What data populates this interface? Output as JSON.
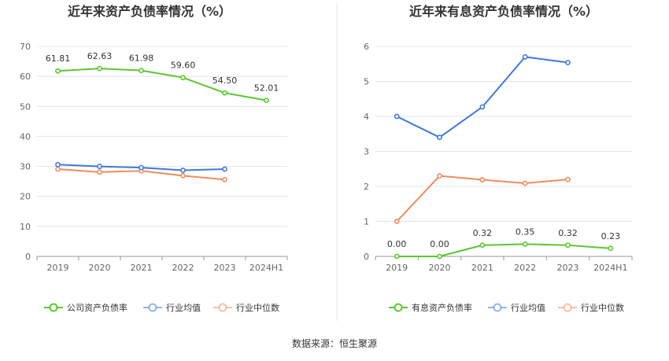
{
  "chart_data": [
    {
      "type": "line",
      "title": "近年来资产负债率情况（%）",
      "categories": [
        "2019",
        "2020",
        "2021",
        "2022",
        "2023",
        "2024H1"
      ],
      "y_ticks": [
        "0",
        "10",
        "20",
        "30",
        "40",
        "50",
        "60",
        "70"
      ],
      "ylim": [
        0,
        70
      ],
      "grid": true,
      "legend_placement": "bottom",
      "series": [
        {
          "name": "公司资产负债率",
          "color": "#5ac831",
          "values": [
            61.81,
            62.63,
            61.98,
            59.6,
            54.5,
            52.01
          ],
          "labels": [
            "61.81",
            "62.63",
            "61.98",
            "59.60",
            "54.50",
            "52.01"
          ]
        },
        {
          "name": "行业均值",
          "color": "#3f79dd",
          "values": [
            30.6,
            30.0,
            29.6,
            28.7,
            29.1,
            null
          ]
        },
        {
          "name": "行业中位数",
          "color": "#f08c5c",
          "values": [
            29.1,
            28.1,
            28.5,
            26.9,
            25.6,
            null
          ]
        }
      ]
    },
    {
      "type": "line",
      "title": "近年来有息资产负债率情况（%）",
      "categories": [
        "2019",
        "2020",
        "2021",
        "2022",
        "2023",
        "2024H1"
      ],
      "y_ticks": [
        "0",
        "1",
        "2",
        "3",
        "4",
        "5",
        "6"
      ],
      "ylim": [
        0,
        6
      ],
      "grid": true,
      "legend_placement": "bottom",
      "series": [
        {
          "name": "有息资产负债率",
          "color": "#5ac831",
          "values": [
            0.0,
            0.0,
            0.32,
            0.35,
            0.32,
            0.23
          ],
          "labels": [
            "0.00",
            "0.00",
            "0.32",
            "0.35",
            "0.32",
            "0.23"
          ]
        },
        {
          "name": "行业均值",
          "color": "#3f79dd",
          "values": [
            4.0,
            3.4,
            4.27,
            5.7,
            5.54,
            null
          ]
        },
        {
          "name": "行业中位数",
          "color": "#f08c5c",
          "values": [
            1.0,
            2.3,
            2.19,
            2.09,
            2.2,
            null
          ]
        }
      ]
    }
  ],
  "footer": "数据来源：恒生聚源"
}
